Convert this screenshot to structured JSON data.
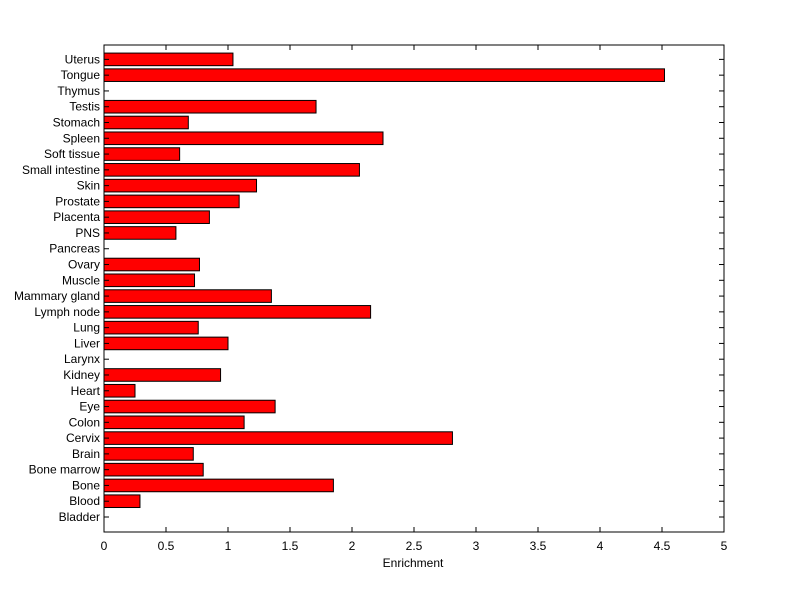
{
  "chart_data": {
    "type": "bar",
    "orientation": "horizontal",
    "categories": [
      "Bladder",
      "Blood",
      "Bone",
      "Bone marrow",
      "Brain",
      "Cervix",
      "Colon",
      "Eye",
      "Heart",
      "Kidney",
      "Larynx",
      "Liver",
      "Lung",
      "Lymph node",
      "Mammary gland",
      "Muscle",
      "Ovary",
      "Pancreas",
      "PNS",
      "Placenta",
      "Prostate",
      "Skin",
      "Small intestine",
      "Soft tissue",
      "Spleen",
      "Stomach",
      "Testis",
      "Thymus",
      "Tongue",
      "Uterus"
    ],
    "values": [
      0,
      0.29,
      1.85,
      0.8,
      0.72,
      2.81,
      1.13,
      1.38,
      0.25,
      0.94,
      0,
      1.0,
      0.76,
      2.15,
      1.35,
      0.73,
      0.77,
      0,
      0.58,
      0.85,
      1.09,
      1.23,
      2.06,
      0.61,
      2.25,
      0.68,
      1.71,
      0,
      4.52,
      1.04
    ],
    "xlabel": "Enrichment",
    "ylabel": "",
    "title": "",
    "xlim": [
      0,
      5
    ],
    "xticks": [
      "0",
      "0.5",
      "1",
      "1.5",
      "2",
      "2.5",
      "3",
      "3.5",
      "4",
      "4.5",
      "5"
    ],
    "grid": false,
    "bar_color": "#ff0000",
    "edge_color": "#000000"
  }
}
